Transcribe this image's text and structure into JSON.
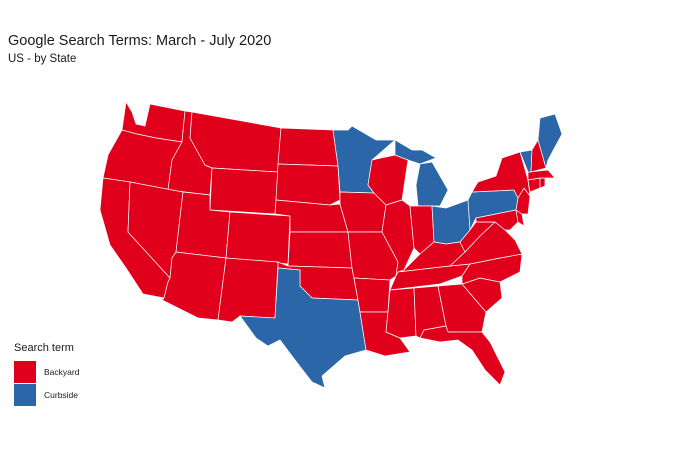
{
  "title": "Google Search Terms: March - July 2020",
  "subtitle": "US - by State",
  "legend": {
    "title": "Search term",
    "items": [
      {
        "label": "Backyard",
        "color": "#e0001b"
      },
      {
        "label": "Curbside",
        "color": "#2b67a8"
      }
    ]
  },
  "map_data": {
    "type": "choropleth",
    "region": "Contiguous United States",
    "categories": {
      "Backyard": "#e0001b",
      "Curbside": "#2b67a8"
    },
    "curbside_states": [
      "Minnesota",
      "Michigan",
      "Ohio",
      "Pennsylvania",
      "Vermont",
      "Maine",
      "Texas"
    ],
    "backyard_states": [
      "Washington",
      "Oregon",
      "California",
      "Idaho",
      "Nevada",
      "Montana",
      "Wyoming",
      "Utah",
      "Arizona",
      "Colorado",
      "New Mexico",
      "North Dakota",
      "South Dakota",
      "Nebraska",
      "Kansas",
      "Oklahoma",
      "Iowa",
      "Missouri",
      "Arkansas",
      "Louisiana",
      "Wisconsin",
      "Illinois",
      "Indiana",
      "Kentucky",
      "Tennessee",
      "Mississippi",
      "Alabama",
      "Georgia",
      "Florida",
      "South Carolina",
      "North Carolina",
      "Virginia",
      "West Virginia",
      "Maryland",
      "Delaware",
      "New Jersey",
      "New York",
      "Connecticut",
      "Rhode Island",
      "Massachusetts",
      "New Hampshire"
    ]
  }
}
